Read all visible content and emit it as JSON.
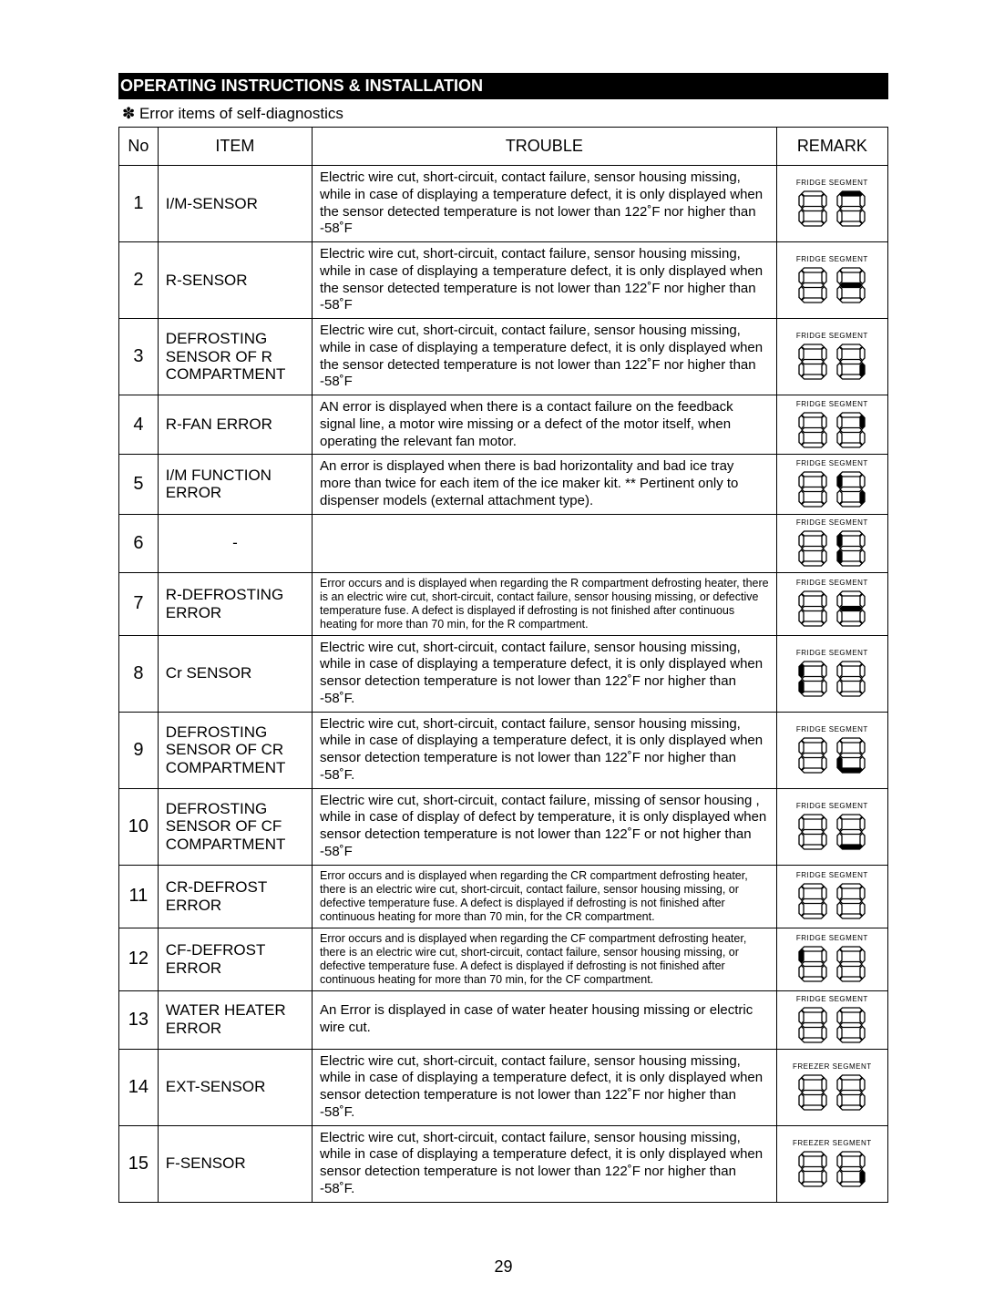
{
  "section_title": "OPERATING INSTRUCTIONS & INSTALLATION",
  "subtitle": "✽ Error items of self-diagnostics",
  "headers": {
    "no": "No",
    "item": "ITEM",
    "trouble": "TROUBLE",
    "remark": "REMARK"
  },
  "page_number": "29",
  "seg_labels": {
    "fridge": "FRIDGE SEGMENT",
    "freezer": "FREEZER SEGMENT"
  },
  "seg_style": {
    "digit_w": 36,
    "digit_h": 44,
    "stroke": "#000000",
    "stroke_w": 1.3,
    "on_fill": "#000000",
    "off_fill": "none"
  },
  "rows": [
    {
      "no": "1",
      "item": "I/M-SENSOR",
      "trouble": "Electric wire cut, short-circuit, contact failure, sensor housing missing, while in case of displaying a temperature defect, it is only displayed when the sensor detected temperature is not lower than 122˚F  nor higher than -58˚F",
      "label": "fridge",
      "digits": [
        [
          0,
          0,
          0,
          0,
          0,
          0,
          0
        ],
        [
          1,
          0,
          0,
          0,
          0,
          0,
          0
        ]
      ]
    },
    {
      "no": "2",
      "item": "R-SENSOR",
      "trouble": "Electric wire cut, short-circuit, contact failure, sensor housing missing, while in case of displaying a temperature defect, it is only displayed when the sensor detected temperature is not lower than 122˚F  nor higher than -58˚F",
      "label": "fridge",
      "digits": [
        [
          0,
          0,
          0,
          0,
          0,
          0,
          0
        ],
        [
          0,
          0,
          0,
          0,
          0,
          0,
          1
        ]
      ]
    },
    {
      "no": "3",
      "item": "DEFROSTING SENSOR OF R COMPARTMENT",
      "trouble": "Electric wire cut, short-circuit, contact failure, sensor housing missing, while in case of displaying a temperature defect, it is only displayed when the sensor detected temperature is not lower than 122˚F  nor higher than -58˚F",
      "label": "fridge",
      "digits": [
        [
          0,
          0,
          0,
          0,
          0,
          0,
          0
        ],
        [
          0,
          0,
          1,
          0,
          0,
          0,
          0
        ]
      ]
    },
    {
      "no": "4",
      "item": "R-FAN ERROR",
      "trouble": "AN error is displayed when there is a contact failure on the feedback signal line, a motor wire missing or a defect of the motor itself, when operating the relevant fan motor.",
      "label": "fridge",
      "digits": [
        [
          0,
          0,
          0,
          0,
          0,
          0,
          0
        ],
        [
          0,
          1,
          0,
          0,
          0,
          0,
          0
        ]
      ]
    },
    {
      "no": "5",
      "item": "I/M FUNCTION ERROR",
      "trouble": "An error is displayed when there is bad horizontality and bad ice tray more than twice for each item of the ice maker kit.\n** Pertinent only to dispenser models (external attachment type).",
      "label": "fridge",
      "digits": [
        [
          0,
          0,
          0,
          0,
          0,
          0,
          0
        ],
        [
          0,
          0,
          1,
          0,
          0,
          1,
          0
        ]
      ]
    },
    {
      "no": "6",
      "item": "-",
      "trouble": "",
      "label": "fridge",
      "digits": [
        [
          0,
          0,
          0,
          0,
          0,
          0,
          0
        ],
        [
          0,
          0,
          0,
          0,
          1,
          1,
          0
        ]
      ]
    },
    {
      "no": "7",
      "item": "R-DEFROSTING ERROR",
      "trouble": "Error occurs and is displayed when regarding the R compartment defrosting heater, there is an electric wire cut, short-circuit, contact failure, sensor housing missing, or defective temperature fuse. A defect is displayed if defrosting is not finished after continuous heating for more than 70 min, for the R compartment.",
      "trouble_small": true,
      "label": "fridge",
      "digits": [
        [
          0,
          0,
          0,
          0,
          0,
          0,
          0
        ],
        [
          0,
          0,
          0,
          0,
          0,
          0,
          1
        ]
      ]
    },
    {
      "no": "8",
      "item": "Cr SENSOR",
      "trouble": "Electric wire cut, short-circuit, contact failure, sensor housing missing, while in case of displaying a temperature defect, it is only displayed when sensor detection temperature is not lower than 122˚F  nor higher than -58˚F.",
      "label": "fridge",
      "digits": [
        [
          0,
          0,
          0,
          0,
          1,
          1,
          0
        ],
        [
          0,
          0,
          0,
          0,
          0,
          0,
          0
        ]
      ]
    },
    {
      "no": "9",
      "item": "DEFROSTING SENSOR OF CR COMPARTMENT",
      "trouble": "Electric wire cut, short-circuit, contact failure, sensor housing missing, while in case of displaying a temperature defect, it is only displayed when sensor detection temperature is not lower than 122˚F  nor higher than -58˚F.",
      "label": "fridge",
      "digits": [
        [
          0,
          0,
          0,
          0,
          0,
          0,
          0
        ],
        [
          0,
          0,
          0,
          1,
          1,
          0,
          0
        ]
      ]
    },
    {
      "no": "10",
      "item": "DEFROSTING SENSOR OF CF COMPARTMENT",
      "trouble": "Electric wire cut, short-circuit, contact failure, missing of sensor housing , while in case of display of defect by temperature, it is only displayed when sensor detection temperature is not lower than 122˚F or not higher than -58˚F",
      "label": "fridge",
      "digits": [
        [
          0,
          0,
          0,
          0,
          0,
          0,
          0
        ],
        [
          0,
          0,
          0,
          1,
          0,
          0,
          0
        ]
      ]
    },
    {
      "no": "11",
      "item": "CR-DEFROST ERROR",
      "trouble": "Error occurs and is displayed when regarding the CR compartment defrosting heater, there is an electric wire cut, short-circuit, contact failure, sensor housing missing, or defective temperature fuse. A defect is displayed if defrosting is not finished after continuous heating for more than 70 min, for the CR compartment.",
      "trouble_small": true,
      "label": "fridge",
      "digits": [
        [
          0,
          0,
          0,
          0,
          0,
          0,
          0
        ],
        [
          0,
          0,
          0,
          0,
          0,
          0,
          0
        ]
      ]
    },
    {
      "no": "12",
      "item": "CF-DEFROST ERROR",
      "trouble": "Error occurs and is displayed when regarding the CF compartment defrosting heater, there is an electric wire cut, short-circuit, contact failure, sensor housing missing, or defective temperature fuse. A defect is displayed if defrosting is not finished after continuous heating for more than 70 min, for the CF compartment.",
      "trouble_small": true,
      "label": "fridge",
      "digits": [
        [
          0,
          0,
          0,
          0,
          0,
          1,
          0
        ],
        [
          0,
          0,
          0,
          0,
          0,
          0,
          0
        ]
      ]
    },
    {
      "no": "13",
      "item": "WATER HEATER ERROR",
      "trouble": "An Error is displayed in case of water heater housing missing or electric wire cut.",
      "label": "fridge",
      "digits": [
        [
          0,
          0,
          0,
          0,
          0,
          0,
          0
        ],
        [
          0,
          0,
          0,
          0,
          0,
          0,
          0
        ]
      ]
    },
    {
      "no": "14",
      "item": "EXT-SENSOR",
      "trouble": "Electric wire cut, short-circuit, contact failure, sensor housing missing, while in case of displaying a temperature defect, it is only displayed when sensor detection temperature is not lower than 122˚F  nor higher than -58˚F.",
      "label": "freezer",
      "digits": [
        [
          0,
          0,
          0,
          0,
          0,
          0,
          0
        ],
        [
          0,
          0,
          0,
          0,
          0,
          0,
          0
        ]
      ]
    },
    {
      "no": "15",
      "item": "F-SENSOR",
      "trouble": "Electric wire cut, short-circuit, contact failure, sensor housing missing, while in case of displaying a temperature defect, it is only displayed when sensor detection temperature is not lower than 122˚F  nor higher than -58˚F.",
      "label": "freezer",
      "digits": [
        [
          0,
          0,
          0,
          0,
          0,
          0,
          0
        ],
        [
          0,
          0,
          1,
          0,
          0,
          0,
          0
        ]
      ]
    }
  ]
}
